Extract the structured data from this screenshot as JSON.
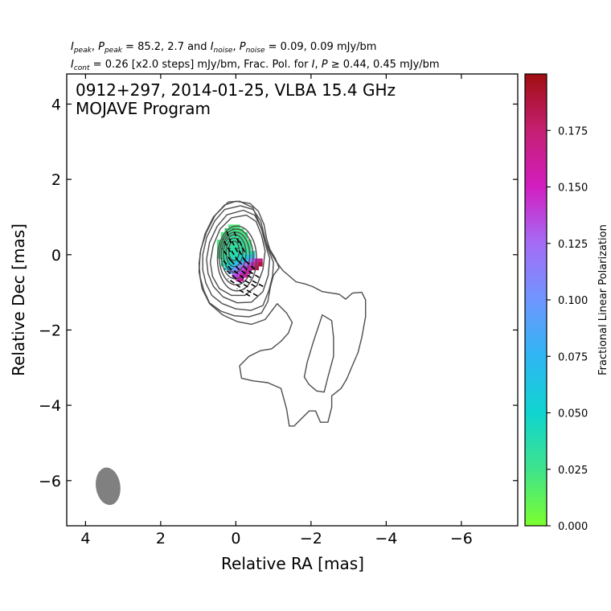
{
  "header": {
    "line1": {
      "sym_i": "I",
      "sub_peak": "peak",
      "sep1": ", ",
      "sym_p": "P",
      "sub_peak2": "peak",
      "mid1": " = 85.2, 2.7 and ",
      "sym_i2": "I",
      "sub_noise": "noise",
      "sep2": ", ",
      "sym_p2": "P",
      "sub_noise2": "noise",
      "end": " = 0.09, 0.09 mJy/bm"
    },
    "line2": {
      "sym_i": "I",
      "sub_cont": "cont",
      "mid": " = 0.26 [x2.0 steps] mJy/bm, Frac. Pol. for ",
      "sym_i2": "I",
      "sep": ", ",
      "sym_p": "P",
      "geq": " ≥ ",
      "end": "0.44, 0.45 mJy/bm"
    }
  },
  "chart_data": {
    "type": "contour",
    "annotation_line1": "0912+297, 2014-01-25, VLBA 15.4 GHz",
    "annotation_line2": "MOJAVE Program",
    "xlabel": "Relative RA [mas]",
    "ylabel": "Relative Dec [mas]",
    "xlim": [
      4.5,
      -7.5
    ],
    "ylim": [
      -7.2,
      4.8
    ],
    "xticks": [
      4,
      2,
      0,
      -2,
      -4,
      -6
    ],
    "xtick_labels": [
      "4",
      "2",
      "0",
      "−2",
      "−4",
      "−6"
    ],
    "yticks": [
      4,
      2,
      0,
      -2,
      -4,
      -6
    ],
    "ytick_labels": [
      "4",
      "2",
      "0",
      "−2",
      "−4",
      "−6"
    ],
    "peak_stokes_i_mJy_bm": 85.2,
    "peak_pol_mJy_bm": 2.7,
    "noise_i_mJy_bm": 0.09,
    "noise_p_mJy_bm": 0.09,
    "lowest_contour_mJy_bm": 0.26,
    "contour_step": 2.0,
    "contours_core": [
      {
        "cx": 0.05,
        "cy": 0.1,
        "rx": 0.14,
        "ry": 0.26
      },
      {
        "cx": 0.04,
        "cy": 0.06,
        "rx": 0.22,
        "ry": 0.38
      },
      {
        "cx": 0.03,
        "cy": 0.03,
        "rx": 0.3,
        "ry": 0.5
      },
      {
        "cx": 0.01,
        "cy": -0.02,
        "rx": 0.38,
        "ry": 0.62
      },
      {
        "cx": -0.01,
        "cy": -0.06,
        "rx": 0.45,
        "ry": 0.74
      },
      {
        "cx": -0.03,
        "cy": -0.1,
        "rx": 0.52,
        "ry": 0.86
      }
    ],
    "contours_outer": [
      [
        [
          0.0,
          1.42
        ],
        [
          -0.38,
          1.36
        ],
        [
          -0.6,
          1.15
        ],
        [
          -0.75,
          0.8
        ],
        [
          -0.82,
          0.42
        ],
        [
          -0.9,
          0.15
        ],
        [
          -1.05,
          -0.1
        ],
        [
          -1.15,
          -0.35
        ],
        [
          -1.0,
          -0.55
        ],
        [
          -0.92,
          -0.85
        ],
        [
          -0.85,
          -1.25
        ],
        [
          -0.68,
          -1.55
        ],
        [
          -0.35,
          -1.65
        ],
        [
          0.05,
          -1.62
        ],
        [
          0.4,
          -1.5
        ],
        [
          0.7,
          -1.28
        ],
        [
          0.85,
          -0.95
        ],
        [
          0.95,
          -0.6
        ],
        [
          0.98,
          -0.25
        ],
        [
          0.93,
          0.15
        ],
        [
          0.78,
          0.6
        ],
        [
          0.55,
          1.05
        ],
        [
          0.3,
          1.32
        ],
        [
          0.0,
          1.42
        ]
      ],
      [
        [
          -0.12,
          1.3
        ],
        [
          -0.46,
          1.2
        ],
        [
          -0.66,
          0.9
        ],
        [
          -0.76,
          0.5
        ],
        [
          -0.84,
          0.2
        ],
        [
          -1.0,
          -0.2
        ],
        [
          -0.98,
          -0.55
        ],
        [
          -0.88,
          -0.95
        ],
        [
          -0.72,
          -1.35
        ],
        [
          -0.4,
          -1.48
        ],
        [
          0.0,
          -1.44
        ],
        [
          0.36,
          -1.3
        ],
        [
          0.64,
          -1.08
        ],
        [
          0.8,
          -0.75
        ],
        [
          0.88,
          -0.4
        ],
        [
          0.88,
          0.0
        ],
        [
          0.78,
          0.45
        ],
        [
          0.56,
          0.9
        ],
        [
          0.3,
          1.2
        ],
        [
          -0.12,
          1.3
        ]
      ],
      [
        [
          -0.2,
          1.18
        ],
        [
          -0.5,
          1.05
        ],
        [
          -0.68,
          0.7
        ],
        [
          -0.78,
          0.3
        ],
        [
          -0.9,
          -0.1
        ],
        [
          -0.86,
          -0.55
        ],
        [
          -0.72,
          -0.98
        ],
        [
          -0.42,
          -1.26
        ],
        [
          -0.04,
          -1.28
        ],
        [
          0.34,
          -1.12
        ],
        [
          0.6,
          -0.84
        ],
        [
          0.74,
          -0.5
        ],
        [
          0.78,
          -0.12
        ],
        [
          0.7,
          0.32
        ],
        [
          0.5,
          0.75
        ],
        [
          0.24,
          1.06
        ],
        [
          -0.2,
          1.18
        ]
      ],
      [
        [
          -0.28,
          1.05
        ],
        [
          -0.54,
          0.88
        ],
        [
          -0.68,
          0.52
        ],
        [
          -0.78,
          0.1
        ],
        [
          -0.72,
          -0.4
        ],
        [
          -0.56,
          -0.82
        ],
        [
          -0.24,
          -1.08
        ],
        [
          0.12,
          -1.08
        ],
        [
          0.44,
          -0.9
        ],
        [
          0.62,
          -0.58
        ],
        [
          0.68,
          -0.2
        ],
        [
          0.6,
          0.25
        ],
        [
          0.42,
          0.68
        ],
        [
          0.12,
          0.98
        ],
        [
          -0.28,
          1.05
        ]
      ]
    ],
    "contour_extended": [
      [
        0.2,
        1.4
      ],
      [
        -0.1,
        1.42
      ],
      [
        -0.45,
        1.25
      ],
      [
        -0.62,
        0.85
      ],
      [
        -0.78,
        0.4
      ],
      [
        -0.9,
        0.1
      ],
      [
        -1.05,
        -0.15
      ],
      [
        -1.25,
        -0.42
      ],
      [
        -1.6,
        -0.72
      ],
      [
        -1.85,
        -0.78
      ],
      [
        -2.05,
        -0.85
      ],
      [
        -2.3,
        -0.98
      ],
      [
        -2.55,
        -1.02
      ],
      [
        -2.75,
        -1.05
      ],
      [
        -2.92,
        -1.18
      ],
      [
        -3.1,
        -1.02
      ],
      [
        -3.35,
        -1.0
      ],
      [
        -3.45,
        -1.2
      ],
      [
        -3.45,
        -1.65
      ],
      [
        -3.35,
        -2.2
      ],
      [
        -3.25,
        -2.6
      ],
      [
        -3.12,
        -2.9
      ],
      [
        -2.95,
        -3.3
      ],
      [
        -2.8,
        -3.55
      ],
      [
        -2.55,
        -3.75
      ],
      [
        -2.55,
        -4.05
      ],
      [
        -2.45,
        -4.45
      ],
      [
        -2.25,
        -4.45
      ],
      [
        -2.12,
        -4.15
      ],
      [
        -1.95,
        -4.15
      ],
      [
        -1.75,
        -4.35
      ],
      [
        -1.55,
        -4.55
      ],
      [
        -1.42,
        -4.55
      ],
      [
        -1.35,
        -4.1
      ],
      [
        -1.2,
        -3.55
      ],
      [
        -0.85,
        -3.4
      ],
      [
        -0.45,
        -3.35
      ],
      [
        -0.15,
        -3.28
      ],
      [
        -0.1,
        -2.95
      ],
      [
        -0.35,
        -2.7
      ],
      [
        -0.65,
        -2.55
      ],
      [
        -0.95,
        -2.5
      ],
      [
        -1.2,
        -2.3
      ],
      [
        -1.4,
        -2.08
      ],
      [
        -1.5,
        -1.8
      ],
      [
        -1.35,
        -1.55
      ],
      [
        -1.1,
        -1.3
      ],
      [
        -0.78,
        -1.72
      ],
      [
        -0.42,
        -1.85
      ],
      [
        -0.05,
        -1.78
      ],
      [
        0.35,
        -1.6
      ],
      [
        0.7,
        -1.3
      ],
      [
        0.9,
        -0.9
      ],
      [
        0.98,
        -0.45
      ],
      [
        0.95,
        0.05
      ],
      [
        0.82,
        0.55
      ],
      [
        0.6,
        1.0
      ],
      [
        0.2,
        1.4
      ]
    ],
    "contour_island": [
      [
        -2.3,
        -1.6
      ],
      [
        -2.55,
        -1.75
      ],
      [
        -2.6,
        -2.2
      ],
      [
        -2.6,
        -2.7
      ],
      [
        -2.45,
        -3.25
      ],
      [
        -2.35,
        -3.65
      ],
      [
        -2.15,
        -3.62
      ],
      [
        -1.95,
        -3.45
      ],
      [
        -1.82,
        -3.25
      ],
      [
        -1.9,
        -2.85
      ],
      [
        -2.05,
        -2.35
      ],
      [
        -2.2,
        -1.9
      ],
      [
        -2.3,
        -1.6
      ]
    ],
    "colorbar": {
      "label": "Fractional Linear Polarization",
      "range": [
        0.0,
        0.2
      ],
      "ticks": [
        0.0,
        0.025,
        0.05,
        0.075,
        0.1,
        0.125,
        0.15,
        0.175
      ],
      "tick_labels": [
        "0.000",
        "0.025",
        "0.050",
        "0.075",
        "0.100",
        "0.125",
        "0.150",
        "0.175"
      ],
      "colors": [
        "#7cff2e",
        "#3ee38c",
        "#10d4d0",
        "#2fb6f2",
        "#6f96ff",
        "#a56cf6",
        "#d21ec0",
        "#c51f72",
        "#a00e10"
      ]
    },
    "polarization_pixels": {
      "xs_start": 0.45,
      "x_step": -0.1,
      "ys_start": 0.75,
      "y_step": -0.1,
      "rows": [
        [
          null,
          null,
          null,
          0.02,
          0.02,
          0.02,
          null,
          null,
          null,
          null,
          null,
          null,
          null
        ],
        [
          null,
          null,
          0.022,
          0.024,
          0.024,
          0.022,
          0.02,
          null,
          null,
          null,
          null,
          null,
          null
        ],
        [
          null,
          0.02,
          0.024,
          0.026,
          0.028,
          0.026,
          0.024,
          0.022,
          null,
          null,
          null,
          null,
          null
        ],
        [
          null,
          0.022,
          0.026,
          0.028,
          0.03,
          0.028,
          0.026,
          0.024,
          null,
          null,
          null,
          null,
          null
        ],
        [
          0.02,
          0.024,
          0.028,
          0.03,
          0.032,
          0.03,
          0.028,
          0.026,
          0.02,
          null,
          null,
          null,
          null
        ],
        [
          0.022,
          0.024,
          0.028,
          0.03,
          0.032,
          0.03,
          0.03,
          0.028,
          0.024,
          null,
          null,
          null,
          null
        ],
        [
          0.022,
          0.026,
          0.03,
          0.032,
          0.034,
          0.034,
          0.032,
          0.03,
          0.026,
          null,
          null,
          null,
          null
        ],
        [
          0.024,
          0.028,
          0.03,
          0.034,
          0.036,
          0.036,
          0.036,
          0.034,
          0.03,
          0.04,
          null,
          null,
          null
        ],
        [
          0.026,
          0.03,
          0.032,
          0.036,
          0.04,
          0.042,
          0.045,
          0.05,
          0.06,
          0.075,
          null,
          null,
          null
        ],
        [
          null,
          0.032,
          0.036,
          0.04,
          0.045,
          0.052,
          0.062,
          0.075,
          0.095,
          0.12,
          0.15,
          0.17,
          null
        ],
        [
          null,
          0.035,
          0.042,
          0.05,
          0.065,
          0.08,
          0.1,
          0.12,
          0.135,
          0.15,
          0.17,
          0.19,
          null
        ],
        [
          null,
          null,
          0.055,
          0.07,
          0.09,
          0.11,
          0.13,
          0.14,
          0.155,
          0.17,
          0.185,
          null,
          null
        ],
        [
          null,
          null,
          null,
          0.09,
          0.11,
          0.125,
          0.14,
          0.15,
          0.16,
          null,
          null,
          null,
          null
        ],
        [
          null,
          null,
          null,
          null,
          0.13,
          0.14,
          0.15,
          0.16,
          null,
          null,
          null,
          null,
          null
        ],
        [
          null,
          null,
          null,
          null,
          null,
          0.15,
          0.16,
          null,
          null,
          null,
          null,
          null,
          null
        ]
      ]
    },
    "evpa_vectors": [
      {
        "x": 0.2,
        "y": 0.5,
        "angle_deg": 20
      },
      {
        "x": 0.0,
        "y": 0.5,
        "angle_deg": 22
      },
      {
        "x": 0.25,
        "y": 0.25,
        "angle_deg": 30
      },
      {
        "x": 0.05,
        "y": 0.25,
        "angle_deg": 28
      },
      {
        "x": -0.15,
        "y": 0.25,
        "angle_deg": 25
      },
      {
        "x": 0.25,
        "y": 0.0,
        "angle_deg": 35
      },
      {
        "x": 0.05,
        "y": 0.0,
        "angle_deg": 33
      },
      {
        "x": -0.15,
        "y": 0.0,
        "angle_deg": 30
      },
      {
        "x": 0.25,
        "y": -0.25,
        "angle_deg": 40
      },
      {
        "x": 0.05,
        "y": -0.25,
        "angle_deg": 42
      },
      {
        "x": -0.15,
        "y": -0.25,
        "angle_deg": 45
      },
      {
        "x": -0.35,
        "y": -0.25,
        "angle_deg": 48
      },
      {
        "x": 0.15,
        "y": -0.5,
        "angle_deg": 50
      },
      {
        "x": -0.05,
        "y": -0.5,
        "angle_deg": 52
      },
      {
        "x": -0.25,
        "y": -0.5,
        "angle_deg": 55
      },
      {
        "x": -0.45,
        "y": -0.5,
        "angle_deg": 58
      },
      {
        "x": 0.05,
        "y": -0.75,
        "angle_deg": 55
      },
      {
        "x": -0.15,
        "y": -0.75,
        "angle_deg": 58
      },
      {
        "x": -0.35,
        "y": -0.75,
        "angle_deg": 60
      },
      {
        "x": -0.55,
        "y": -0.75,
        "angle_deg": 62
      },
      {
        "x": -0.2,
        "y": -1.0,
        "angle_deg": 60
      },
      {
        "x": -0.4,
        "y": -1.0,
        "angle_deg": 62
      }
    ],
    "beam": {
      "x": 3.4,
      "y": -6.15,
      "major_mas": 1.0,
      "minor_mas": 0.65,
      "pa_deg": -8,
      "color": "#808080"
    },
    "contour_color": "#4d4d4d",
    "grid": false
  }
}
